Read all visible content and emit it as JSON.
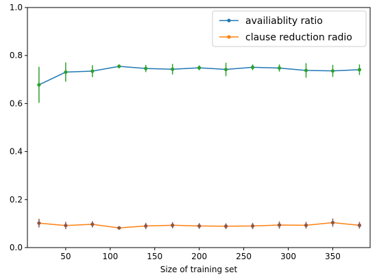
{
  "chart_data": {
    "type": "line",
    "title": "",
    "xlabel": "Size of training set",
    "ylabel": "",
    "xlim": [
      7,
      392
    ],
    "ylim": [
      0.0,
      1.0
    ],
    "xticks": [
      50,
      100,
      150,
      200,
      250,
      300,
      350
    ],
    "yticks": [
      0.0,
      0.2,
      0.4,
      0.6,
      0.8,
      1.0
    ],
    "xtick_labels": [
      "50",
      "100",
      "150",
      "200",
      "250",
      "300",
      "350"
    ],
    "ytick_labels": [
      "0.0",
      "0.2",
      "0.4",
      "0.6",
      "0.8",
      "1.0"
    ],
    "grid": false,
    "legend_position": "top-right",
    "x": [
      20,
      50,
      80,
      110,
      140,
      170,
      200,
      230,
      260,
      290,
      320,
      350,
      380
    ],
    "series": [
      {
        "name": "availiablity ratio",
        "color": "#1f77b4",
        "marker_color": "#2ca02c",
        "errorbar_color": "#2ca02c",
        "values": [
          0.678,
          0.731,
          0.735,
          0.755,
          0.746,
          0.743,
          0.749,
          0.742,
          0.751,
          0.748,
          0.738,
          0.736,
          0.741
        ],
        "errors": [
          0.075,
          0.04,
          0.025,
          0.008,
          0.015,
          0.022,
          0.01,
          0.028,
          0.012,
          0.015,
          0.03,
          0.025,
          0.022
        ]
      },
      {
        "name": "clause reduction radio",
        "color": "#ff7f0e",
        "marker_color": "#8c564b",
        "errorbar_color": "#8c564b",
        "values": [
          0.102,
          0.092,
          0.097,
          0.082,
          0.09,
          0.093,
          0.09,
          0.089,
          0.09,
          0.094,
          0.093,
          0.104,
          0.093
        ],
        "errors": [
          0.018,
          0.015,
          0.013,
          0.004,
          0.013,
          0.013,
          0.012,
          0.012,
          0.013,
          0.015,
          0.014,
          0.017,
          0.014
        ]
      }
    ]
  }
}
